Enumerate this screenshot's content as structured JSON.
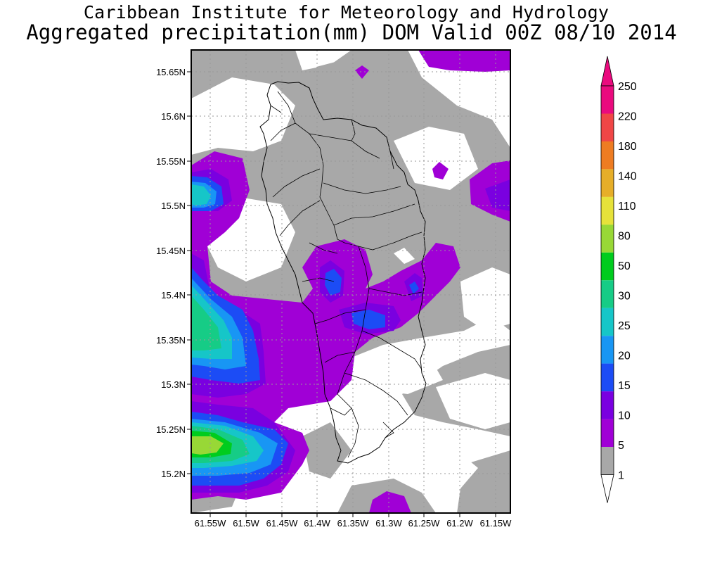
{
  "title": {
    "line1": "Caribbean Institute for Meteorology and Hydrology",
    "line2": "Aggregated precipitation(mm) DOM Valid 00Z 08/10 2014"
  },
  "axes": {
    "lat_labels": [
      "15.65N",
      "15.6N",
      "15.55N",
      "15.5N",
      "15.45N",
      "15.4N",
      "15.35N",
      "15.3N",
      "15.25N",
      "15.2N"
    ],
    "lon_labels": [
      "61.55W",
      "61.5W",
      "61.45W",
      "61.4W",
      "61.35W",
      "61.3W",
      "61.25W",
      "61.2W",
      "61.15W"
    ]
  },
  "colorbar": {
    "levels": [
      "1",
      "5",
      "10",
      "15",
      "20",
      "25",
      "30",
      "50",
      "80",
      "110",
      "140",
      "180",
      "220",
      "250"
    ],
    "colors": [
      "#a8a8a8",
      "#a000d6",
      "#7a00e0",
      "#1c4cf5",
      "#1896f4",
      "#16c6c8",
      "#16cc86",
      "#00cc1e",
      "#98d836",
      "#e6e23a",
      "#e6ae28",
      "#ee7c22",
      "#f04646",
      "#ea0a7e"
    ]
  },
  "map": {
    "island": "Dominica",
    "legend_above_top": "#ea0a7e",
    "legend_below_bottom": "#ffffff"
  }
}
